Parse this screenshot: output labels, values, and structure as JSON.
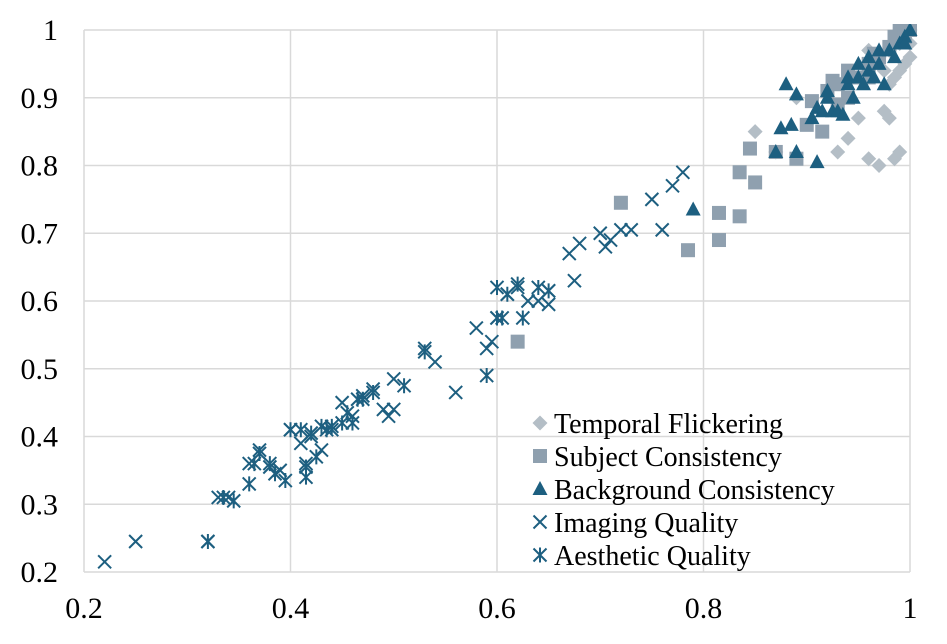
{
  "chart_data": {
    "type": "scatter",
    "title": "",
    "xlabel": "",
    "ylabel": "",
    "xlim": [
      0.2,
      1
    ],
    "ylim": [
      0.2,
      1
    ],
    "x_ticks": [
      "0.2",
      "0.4",
      "0.6",
      "0.8",
      "1"
    ],
    "y_ticks": [
      "0.2",
      "0.3",
      "0.4",
      "0.5",
      "0.6",
      "0.7",
      "0.8",
      "0.9",
      "1"
    ],
    "grid": true,
    "legend_position": "bottom-right",
    "series": [
      {
        "name": "Temporal Flickering",
        "marker": "diamond",
        "color": "#b4bec6",
        "points": [
          [
            0.85,
            0.85
          ],
          [
            0.87,
            0.82
          ],
          [
            0.89,
            0.9
          ],
          [
            0.93,
            0.82
          ],
          [
            0.94,
            0.84
          ],
          [
            0.95,
            0.87
          ],
          [
            0.96,
            0.81
          ],
          [
            0.97,
            0.8
          ],
          [
            0.975,
            0.88
          ],
          [
            0.98,
            0.87
          ],
          [
            0.985,
            0.81
          ],
          [
            0.99,
            0.82
          ],
          [
            0.98,
            0.92
          ],
          [
            0.985,
            0.93
          ],
          [
            0.99,
            0.94
          ],
          [
            0.995,
            0.95
          ],
          [
            1.0,
            0.96
          ],
          [
            0.97,
            0.96
          ],
          [
            0.98,
            0.97
          ],
          [
            0.99,
            0.98
          ],
          [
            0.995,
            0.99
          ],
          [
            1.0,
            1.0
          ],
          [
            0.99,
            1.0
          ],
          [
            0.96,
            0.97
          ],
          [
            0.975,
            0.94
          ],
          [
            1.0,
            0.98
          ]
        ]
      },
      {
        "name": "Subject Consistency",
        "marker": "square",
        "color": "#8fa0af",
        "points": [
          [
            0.62,
            0.54
          ],
          [
            0.72,
            0.745
          ],
          [
            0.785,
            0.675
          ],
          [
            0.815,
            0.69
          ],
          [
            0.815,
            0.73
          ],
          [
            0.835,
            0.725
          ],
          [
            0.835,
            0.79
          ],
          [
            0.845,
            0.825
          ],
          [
            0.85,
            0.775
          ],
          [
            0.87,
            0.82
          ],
          [
            0.89,
            0.81
          ],
          [
            0.9,
            0.86
          ],
          [
            0.905,
            0.895
          ],
          [
            0.915,
            0.85
          ],
          [
            0.92,
            0.91
          ],
          [
            0.925,
            0.925
          ],
          [
            0.93,
            0.92
          ],
          [
            0.94,
            0.9
          ],
          [
            0.94,
            0.94
          ],
          [
            0.95,
            0.93
          ],
          [
            0.96,
            0.95
          ],
          [
            0.965,
            0.965
          ],
          [
            0.97,
            0.96
          ],
          [
            0.98,
            0.975
          ],
          [
            0.985,
            0.99
          ],
          [
            0.99,
            1.0
          ],
          [
            1.0,
            1.0
          ],
          [
            0.995,
            0.99
          ],
          [
            0.96,
            0.93
          ],
          [
            0.93,
            0.89
          ]
        ]
      },
      {
        "name": "Background Consistency",
        "marker": "triangle",
        "color": "#1d5f80",
        "points": [
          [
            0.79,
            0.735
          ],
          [
            0.87,
            0.82
          ],
          [
            0.875,
            0.855
          ],
          [
            0.88,
            0.92
          ],
          [
            0.885,
            0.86
          ],
          [
            0.89,
            0.905
          ],
          [
            0.89,
            0.82
          ],
          [
            0.905,
            0.87
          ],
          [
            0.91,
            0.805
          ],
          [
            0.91,
            0.885
          ],
          [
            0.915,
            0.88
          ],
          [
            0.92,
            0.9
          ],
          [
            0.92,
            0.91
          ],
          [
            0.925,
            0.88
          ],
          [
            0.93,
            0.88
          ],
          [
            0.935,
            0.875
          ],
          [
            0.94,
            0.92
          ],
          [
            0.945,
            0.9
          ],
          [
            0.95,
            0.93
          ],
          [
            0.95,
            0.95
          ],
          [
            0.955,
            0.92
          ],
          [
            0.96,
            0.94
          ],
          [
            0.965,
            0.93
          ],
          [
            0.97,
            0.95
          ],
          [
            0.975,
            0.92
          ],
          [
            0.98,
            0.97
          ],
          [
            0.985,
            0.96
          ],
          [
            0.99,
            0.98
          ],
          [
            0.995,
            0.99
          ],
          [
            1.0,
            1.0
          ],
          [
            0.995,
            0.98
          ],
          [
            0.96,
            0.96
          ],
          [
            0.97,
            0.97
          ],
          [
            0.94,
            0.93
          ]
        ]
      },
      {
        "name": "Imaging Quality",
        "marker": "x",
        "color": "#1d5f80",
        "points": [
          [
            0.22,
            0.215
          ],
          [
            0.25,
            0.245
          ],
          [
            0.32,
            0.245
          ],
          [
            0.33,
            0.31
          ],
          [
            0.34,
            0.31
          ],
          [
            0.36,
            0.36
          ],
          [
            0.37,
            0.38
          ],
          [
            0.38,
            0.355
          ],
          [
            0.39,
            0.35
          ],
          [
            0.4,
            0.41
          ],
          [
            0.41,
            0.39
          ],
          [
            0.415,
            0.36
          ],
          [
            0.42,
            0.4
          ],
          [
            0.43,
            0.38
          ],
          [
            0.44,
            0.41
          ],
          [
            0.45,
            0.45
          ],
          [
            0.46,
            0.43
          ],
          [
            0.47,
            0.46
          ],
          [
            0.48,
            0.47
          ],
          [
            0.49,
            0.44
          ],
          [
            0.495,
            0.43
          ],
          [
            0.5,
            0.485
          ],
          [
            0.5,
            0.44
          ],
          [
            0.53,
            0.53
          ],
          [
            0.54,
            0.51
          ],
          [
            0.56,
            0.465
          ],
          [
            0.58,
            0.56
          ],
          [
            0.59,
            0.53
          ],
          [
            0.595,
            0.54
          ],
          [
            0.6,
            0.575
          ],
          [
            0.61,
            0.61
          ],
          [
            0.62,
            0.62
          ],
          [
            0.63,
            0.6
          ],
          [
            0.64,
            0.6
          ],
          [
            0.65,
            0.615
          ],
          [
            0.67,
            0.67
          ],
          [
            0.68,
            0.685
          ],
          [
            0.7,
            0.7
          ],
          [
            0.71,
            0.69
          ],
          [
            0.72,
            0.705
          ],
          [
            0.73,
            0.705
          ],
          [
            0.75,
            0.75
          ],
          [
            0.76,
            0.705
          ],
          [
            0.77,
            0.77
          ],
          [
            0.78,
            0.79
          ],
          [
            0.65,
            0.595
          ],
          [
            0.675,
            0.63
          ],
          [
            0.705,
            0.68
          ]
        ]
      },
      {
        "name": "Aesthetic Quality",
        "marker": "star",
        "color": "#1d5f80",
        "points": [
          [
            0.32,
            0.245
          ],
          [
            0.335,
            0.31
          ],
          [
            0.345,
            0.305
          ],
          [
            0.36,
            0.33
          ],
          [
            0.365,
            0.36
          ],
          [
            0.37,
            0.375
          ],
          [
            0.38,
            0.36
          ],
          [
            0.385,
            0.345
          ],
          [
            0.395,
            0.335
          ],
          [
            0.4,
            0.41
          ],
          [
            0.41,
            0.41
          ],
          [
            0.415,
            0.34
          ],
          [
            0.415,
            0.355
          ],
          [
            0.42,
            0.405
          ],
          [
            0.425,
            0.37
          ],
          [
            0.43,
            0.415
          ],
          [
            0.435,
            0.41
          ],
          [
            0.44,
            0.415
          ],
          [
            0.45,
            0.42
          ],
          [
            0.455,
            0.435
          ],
          [
            0.46,
            0.42
          ],
          [
            0.465,
            0.455
          ],
          [
            0.47,
            0.455
          ],
          [
            0.48,
            0.465
          ],
          [
            0.51,
            0.475
          ],
          [
            0.53,
            0.525
          ],
          [
            0.59,
            0.49
          ],
          [
            0.6,
            0.575
          ],
          [
            0.61,
            0.61
          ],
          [
            0.62,
            0.625
          ],
          [
            0.625,
            0.575
          ],
          [
            0.64,
            0.62
          ],
          [
            0.65,
            0.615
          ],
          [
            0.605,
            0.575
          ],
          [
            0.6,
            0.62
          ]
        ]
      }
    ]
  }
}
